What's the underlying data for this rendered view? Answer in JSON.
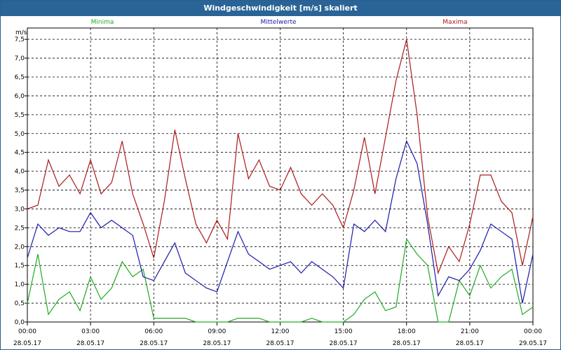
{
  "window": {
    "title": "Windgeschwindigkeit [m/s] skaliert"
  },
  "colors": {
    "minima": "#22aa22",
    "mittel": "#1a1aaa",
    "maxima": "#aa1a1a",
    "title_bg": "#2a6496"
  },
  "chart_data": {
    "type": "line",
    "title": "Windgeschwindigkeit [m/s] skaliert",
    "ylabel": "m/s",
    "ylim": [
      0,
      7.8
    ],
    "xlim_hours": [
      0,
      24
    ],
    "grid": true,
    "legend_placement": "top",
    "y_ticks": [
      "0,0",
      "0,5",
      "1,0",
      "1,5",
      "2,0",
      "2,5",
      "3,0",
      "3,5",
      "4,0",
      "4,5",
      "5,0",
      "5,5",
      "6,0",
      "6,5",
      "7,0",
      "7,5"
    ],
    "x_ticks": [
      {
        "time": "00:00",
        "date": "28.05.17"
      },
      {
        "time": "03:00",
        "date": "28.05.17"
      },
      {
        "time": "06:00",
        "date": "28.05.17"
      },
      {
        "time": "09:00",
        "date": "28.05.17"
      },
      {
        "time": "12:00",
        "date": "28.05.17"
      },
      {
        "time": "15:00",
        "date": "28.05.17"
      },
      {
        "time": "18:00",
        "date": "28.05.17"
      },
      {
        "time": "21:00",
        "date": "28.05.17"
      },
      {
        "time": "00:00",
        "date": "29.05.17"
      }
    ],
    "series": [
      {
        "name": "Minima",
        "color": "#22aa22",
        "x": [
          0,
          0.5,
          1,
          1.5,
          2,
          2.5,
          3,
          3.5,
          4,
          4.5,
          5,
          5.5,
          6,
          6.5,
          7,
          7.5,
          8,
          8.5,
          9,
          9.5,
          10,
          10.5,
          11,
          11.5,
          12,
          12.5,
          13,
          13.5,
          14,
          14.5,
          15,
          15.5,
          16,
          16.5,
          17,
          17.5,
          18,
          18.5,
          19,
          19.5,
          20,
          20.5,
          21,
          21.5,
          22,
          22.5,
          23,
          23.5,
          24
        ],
        "values": [
          0.5,
          1.8,
          0.2,
          0.6,
          0.8,
          0.3,
          1.2,
          0.6,
          0.9,
          1.6,
          1.2,
          1.4,
          0.1,
          0.1,
          0.1,
          0.1,
          0,
          0,
          0,
          0,
          0.1,
          0.1,
          0.1,
          0,
          0,
          0,
          0,
          0.1,
          0,
          0,
          0,
          0.2,
          0.6,
          0.8,
          0.3,
          0.4,
          2.2,
          1.8,
          1.5,
          0,
          0,
          1.1,
          0.7,
          1.5,
          0.9,
          1.2,
          1.4,
          0.2,
          0.4
        ]
      },
      {
        "name": "Mittelwerte",
        "color": "#1a1aaa",
        "x": [
          0,
          0.5,
          1,
          1.5,
          2,
          2.5,
          3,
          3.5,
          4,
          4.5,
          5,
          5.5,
          6,
          6.5,
          7,
          7.5,
          8,
          8.5,
          9,
          9.5,
          10,
          10.5,
          11,
          11.5,
          12,
          12.5,
          13,
          13.5,
          14,
          14.5,
          15,
          15.5,
          16,
          16.5,
          17,
          17.5,
          18,
          18.5,
          19,
          19.5,
          20,
          20.5,
          21,
          21.5,
          22,
          22.5,
          23,
          23.5,
          24
        ],
        "values": [
          1.7,
          2.6,
          2.3,
          2.5,
          2.4,
          2.4,
          2.9,
          2.5,
          2.7,
          2.5,
          2.3,
          1.2,
          1.1,
          1.6,
          2.1,
          1.3,
          1.1,
          0.9,
          0.8,
          1.6,
          2.4,
          1.8,
          1.6,
          1.4,
          1.5,
          1.6,
          1.3,
          1.6,
          1.4,
          1.2,
          0.9,
          2.6,
          2.4,
          2.7,
          2.4,
          3.8,
          4.8,
          4.2,
          2.6,
          0.7,
          1.2,
          1.1,
          1.4,
          1.9,
          2.6,
          2.4,
          2.2,
          0.5,
          1.8
        ]
      },
      {
        "name": "Maxima",
        "color": "#aa1a1a",
        "x": [
          0,
          0.5,
          1,
          1.5,
          2,
          2.5,
          3,
          3.5,
          4,
          4.5,
          5,
          5.5,
          6,
          6.5,
          7,
          7.5,
          8,
          8.5,
          9,
          9.5,
          10,
          10.5,
          11,
          11.5,
          12,
          12.5,
          13,
          13.5,
          14,
          14.5,
          15,
          15.5,
          16,
          16.5,
          17,
          17.5,
          18,
          18.5,
          19,
          19.5,
          20,
          20.5,
          21,
          21.5,
          22,
          22.5,
          23,
          23.5,
          24
        ],
        "values": [
          3.0,
          3.1,
          4.3,
          3.6,
          3.9,
          3.4,
          4.3,
          3.4,
          3.7,
          4.8,
          3.4,
          2.6,
          1.7,
          3.2,
          5.1,
          3.8,
          2.6,
          2.1,
          2.7,
          2.2,
          5.0,
          3.8,
          4.3,
          3.6,
          3.5,
          4.1,
          3.4,
          3.1,
          3.4,
          3.1,
          2.5,
          3.5,
          4.9,
          3.4,
          4.9,
          6.4,
          7.5,
          5.5,
          2.8,
          1.3,
          2.0,
          1.6,
          2.6,
          3.9,
          3.9,
          3.2,
          2.9,
          1.5,
          2.8
        ]
      }
    ]
  }
}
